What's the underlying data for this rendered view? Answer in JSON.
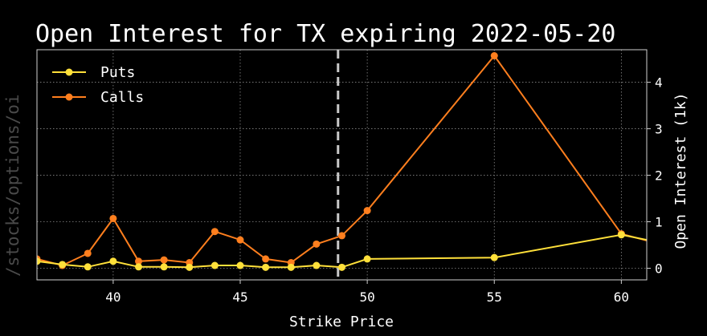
{
  "watermark": "/stocks/options/oi",
  "chart_data": {
    "type": "line",
    "title": "Open Interest for TX expiring 2022-05-20",
    "xlabel": "Strike Price",
    "ylabel": "Open Interest (1k)",
    "xlim": [
      37,
      61
    ],
    "ylim": [
      -0.25,
      4.7
    ],
    "y_axis_side": "right",
    "grid": true,
    "legend_position": "top-left",
    "x_ticks": [
      40,
      45,
      50,
      55,
      60
    ],
    "y_ticks": [
      0,
      1,
      2,
      3,
      4
    ],
    "vline": {
      "x": 48.85,
      "style": "dashed",
      "color": "#c8c8c8"
    },
    "series": [
      {
        "name": "Puts",
        "color": "#ffe03a",
        "x": [
          36,
          37,
          38,
          39,
          40,
          41,
          42,
          43,
          44,
          45,
          46,
          47,
          48,
          49,
          50,
          55,
          60,
          62
        ],
        "values": [
          0.08,
          0.15,
          0.08,
          0.03,
          0.15,
          0.03,
          0.03,
          0.02,
          0.06,
          0.06,
          0.02,
          0.02,
          0.06,
          0.02,
          0.2,
          0.23,
          0.72,
          0.5
        ]
      },
      {
        "name": "Calls",
        "color": "#ff7f1e",
        "x": [
          36,
          37,
          38,
          39,
          40,
          41,
          42,
          43,
          44,
          45,
          46,
          47,
          48,
          49,
          50,
          55,
          60,
          62
        ],
        "values": [
          0.1,
          0.2,
          0.06,
          0.32,
          1.07,
          0.15,
          0.18,
          0.12,
          0.79,
          0.61,
          0.2,
          0.12,
          0.52,
          0.7,
          1.24,
          4.57,
          0.74,
          0.45
        ]
      }
    ]
  }
}
